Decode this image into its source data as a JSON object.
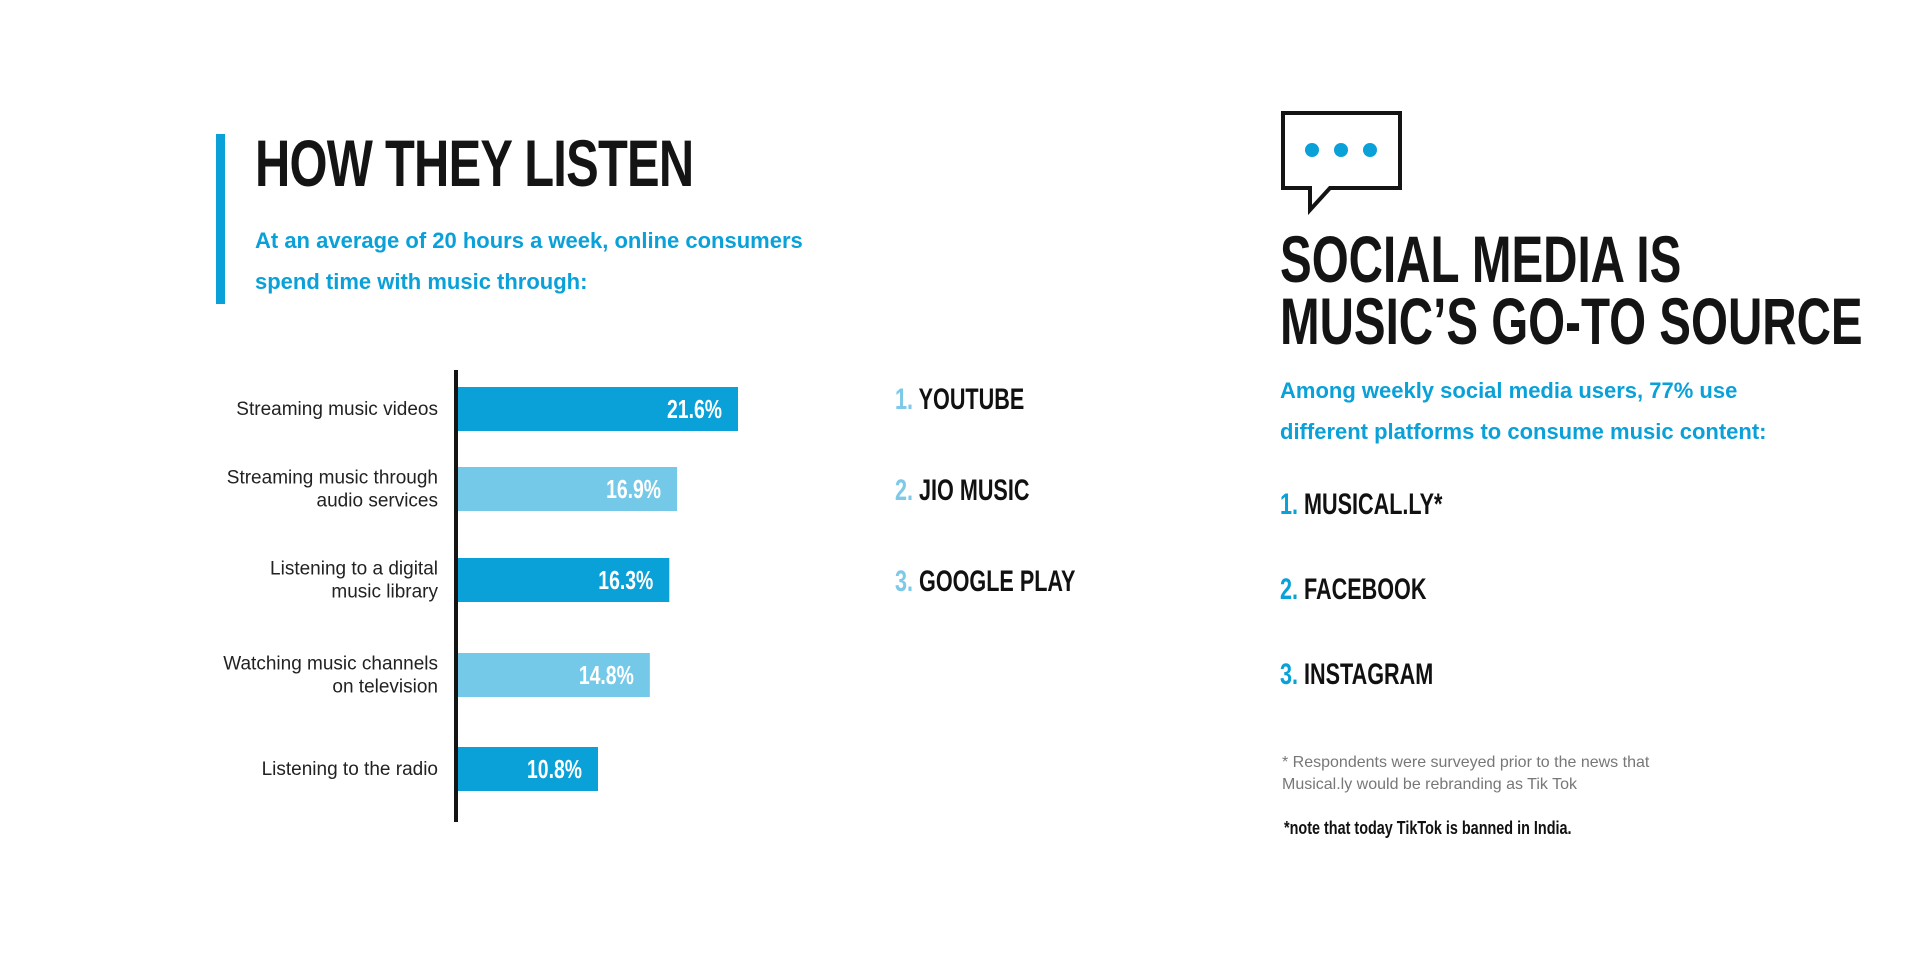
{
  "header": {
    "title": "HOW THEY LISTEN",
    "subtitle": "At an average of 20 hours a week, online consumers spend time with music through:"
  },
  "colors": {
    "accent": "#0aa0d8",
    "light": "#75c9e8",
    "dark_text": "#141414"
  },
  "chart_data": {
    "type": "bar",
    "orientation": "horizontal",
    "categories": [
      [
        "Streaming music videos"
      ],
      [
        "Streaming music through",
        "audio services"
      ],
      [
        "Listening to a digital",
        "music library"
      ],
      [
        "Watching music channels",
        "on television"
      ],
      [
        "Listening to the radio"
      ]
    ],
    "values": [
      21.6,
      16.9,
      16.3,
      14.8,
      10.8
    ],
    "value_labels": [
      "21.6%",
      "16.9%",
      "16.3%",
      "14.8%",
      "10.8%"
    ],
    "bar_colors": [
      "#0aa0d8",
      "#75c9e8",
      "#0aa0d8",
      "#75c9e8",
      "#0aa0d8"
    ],
    "unit": "%",
    "grid": false
  },
  "listen_ranking": [
    {
      "num": "1.",
      "name": "YOUTUBE"
    },
    {
      "num": "2.",
      "name": "JIO MUSIC"
    },
    {
      "num": "3.",
      "name": "GOOGLE PLAY"
    }
  ],
  "social": {
    "icon": "chat-bubble-icon",
    "title_lines": [
      "SOCIAL MEDIA IS",
      "MUSIC’S GO-TO SOURCE"
    ],
    "subtitle": "Among weekly social media users, 77% use different platforms to consume music content:",
    "ranking": [
      {
        "num": "1.",
        "name": "MUSICAL.LY*"
      },
      {
        "num": "2.",
        "name": "FACEBOOK"
      },
      {
        "num": "3.",
        "name": "INSTAGRAM"
      }
    ],
    "footnote": "* Respondents were surveyed prior to the news that Musical.ly would be rebranding as Tik Tok",
    "note": "*note that today TikTok is banned in India."
  }
}
